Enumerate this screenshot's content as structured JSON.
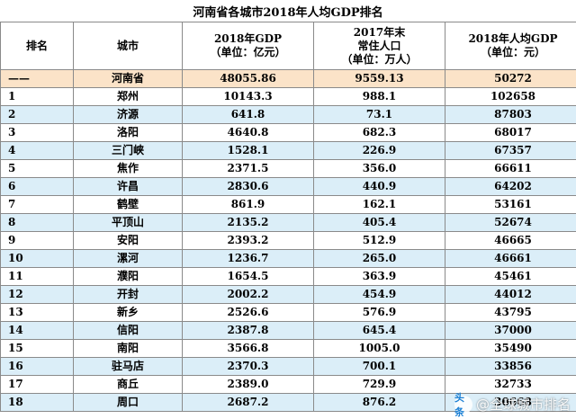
{
  "title": "河南省各城市2018年人均GDP排名",
  "headers": {
    "rank": "排名",
    "city": "城市",
    "gdp_line1": "2018年GDP",
    "gdp_line2": "（单位：亿元）",
    "pop_line1": "2017年末",
    "pop_line2": "常住人口",
    "pop_line3": "（单位：万人）",
    "per_line1": "2018年人均GDP",
    "per_line2": "（单位：元）"
  },
  "rows": [
    {
      "rank": "——",
      "city": "河南省",
      "gdp": "48055.86",
      "pop": "9559.13",
      "per": "50272"
    },
    {
      "rank": "1",
      "city": "郑州",
      "gdp": "10143.3",
      "pop": "988.1",
      "per": "102658"
    },
    {
      "rank": "2",
      "city": "济源",
      "gdp": "641.8",
      "pop": "73.1",
      "per": "87803"
    },
    {
      "rank": "3",
      "city": "洛阳",
      "gdp": "4640.8",
      "pop": "682.3",
      "per": "68017"
    },
    {
      "rank": "4",
      "city": "三门峡",
      "gdp": "1528.1",
      "pop": "226.9",
      "per": "67357"
    },
    {
      "rank": "5",
      "city": "焦作",
      "gdp": "2371.5",
      "pop": "356.0",
      "per": "66611"
    },
    {
      "rank": "6",
      "city": "许昌",
      "gdp": "2830.6",
      "pop": "440.9",
      "per": "64202"
    },
    {
      "rank": "7",
      "city": "鹤壁",
      "gdp": "861.9",
      "pop": "162.1",
      "per": "53161"
    },
    {
      "rank": "8",
      "city": "平顶山",
      "gdp": "2135.2",
      "pop": "405.4",
      "per": "52674"
    },
    {
      "rank": "9",
      "city": "安阳",
      "gdp": "2393.2",
      "pop": "512.9",
      "per": "46665"
    },
    {
      "rank": "10",
      "city": "漯河",
      "gdp": "1236.7",
      "pop": "265.0",
      "per": "46661"
    },
    {
      "rank": "11",
      "city": "濮阳",
      "gdp": "1654.5",
      "pop": "363.9",
      "per": "45461"
    },
    {
      "rank": "12",
      "city": "开封",
      "gdp": "2002.2",
      "pop": "454.9",
      "per": "44012"
    },
    {
      "rank": "13",
      "city": "新乡",
      "gdp": "2526.6",
      "pop": "576.9",
      "per": "43795"
    },
    {
      "rank": "14",
      "city": "信阳",
      "gdp": "2387.8",
      "pop": "645.4",
      "per": "37000"
    },
    {
      "rank": "15",
      "city": "南阳",
      "gdp": "3566.8",
      "pop": "1005.0",
      "per": "35490"
    },
    {
      "rank": "16",
      "city": "驻马店",
      "gdp": "2370.3",
      "pop": "700.1",
      "per": "33856"
    },
    {
      "rank": "17",
      "city": "商丘",
      "gdp": "2389.0",
      "pop": "729.9",
      "per": "32733"
    },
    {
      "rank": "18",
      "city": "周口",
      "gdp": "2687.2",
      "pop": "876.2",
      "per": "30668"
    }
  ],
  "watermark": {
    "logo": "头条",
    "text": "@全球城市排名"
  },
  "colors": {
    "header_bg": "#ffffff",
    "row_even_bg": "#dbeef8",
    "province_row_bg": "#fbe3c8",
    "border": "#8a8a8a"
  }
}
